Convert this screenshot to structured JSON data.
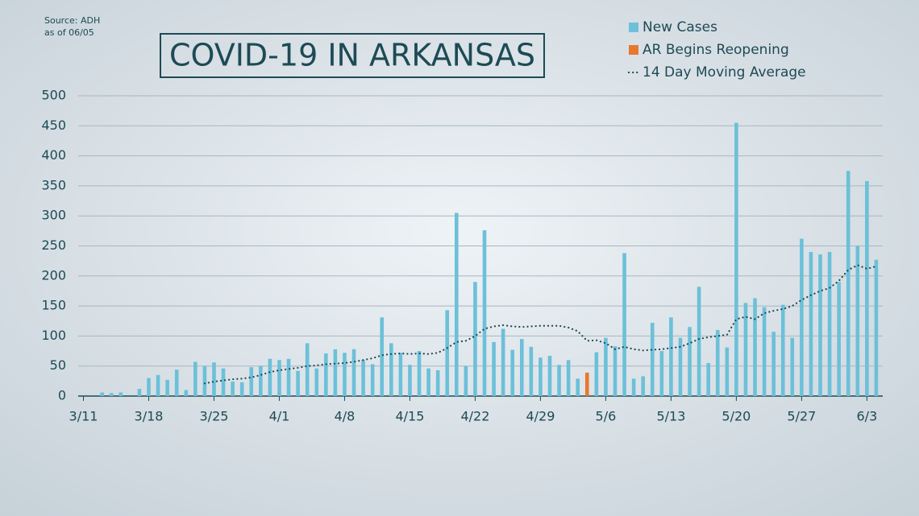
{
  "chart_data": {
    "type": "bar",
    "title": "COVID-19 IN ARKANSAS",
    "source": "Source: ADH",
    "as_of": "as of 06/05",
    "categories": [
      "3/11",
      null,
      null,
      null,
      null,
      null,
      null,
      "3/18",
      null,
      null,
      null,
      null,
      null,
      null,
      "3/25",
      null,
      null,
      null,
      null,
      null,
      null,
      "4/1",
      null,
      null,
      null,
      null,
      null,
      null,
      "4/8",
      null,
      null,
      null,
      null,
      null,
      null,
      "4/15",
      null,
      null,
      null,
      null,
      null,
      null,
      "4/22",
      null,
      null,
      null,
      null,
      null,
      null,
      "4/29",
      null,
      null,
      null,
      null,
      null,
      null,
      "5/6",
      null,
      null,
      null,
      null,
      null,
      null,
      "5/13",
      null,
      null,
      null,
      null,
      null,
      null,
      "5/20",
      null,
      null,
      null,
      null,
      null,
      null,
      "5/27",
      null,
      null,
      null,
      null,
      null,
      null,
      "6/3",
      null
    ],
    "series": [
      {
        "name": "New Cases",
        "type": "bar",
        "color": "#6cc0d9",
        "values": [
          0,
          0,
          6,
          5,
          6,
          0,
          12,
          30,
          35,
          27,
          44,
          10,
          57,
          50,
          56,
          46,
          24,
          23,
          48,
          50,
          62,
          60,
          62,
          42,
          88,
          46,
          71,
          78,
          72,
          78,
          60,
          53,
          131,
          88,
          72,
          52,
          75,
          46,
          43,
          143,
          305,
          50,
          190,
          276,
          90,
          112,
          77,
          95,
          82,
          64,
          67,
          52,
          60,
          29,
          null,
          73,
          97,
          83,
          238,
          29,
          33,
          122,
          75,
          131,
          97,
          115,
          182,
          55,
          110,
          81,
          455,
          155,
          163,
          148,
          107,
          152,
          97,
          262,
          240,
          236,
          240,
          190,
          375,
          250,
          358,
          227
        ]
      },
      {
        "name": "AR Begins Reopening",
        "type": "bar",
        "color": "#e8782e",
        "values": [
          null,
          null,
          null,
          null,
          null,
          null,
          null,
          null,
          null,
          null,
          null,
          null,
          null,
          null,
          null,
          null,
          null,
          null,
          null,
          null,
          null,
          null,
          null,
          null,
          null,
          null,
          null,
          null,
          null,
          null,
          null,
          null,
          null,
          null,
          null,
          null,
          null,
          null,
          null,
          null,
          null,
          null,
          null,
          null,
          null,
          null,
          null,
          null,
          null,
          null,
          null,
          null,
          null,
          null,
          39,
          null,
          null,
          null,
          null,
          null,
          null,
          null,
          null,
          null,
          null,
          null,
          null,
          null,
          null,
          null,
          null,
          null,
          null,
          null,
          null,
          null,
          null,
          null,
          null,
          null,
          null,
          null,
          null,
          null,
          null,
          null
        ]
      },
      {
        "name": "14 Day Moving Average",
        "type": "line",
        "color": "#1d4a55",
        "values": [
          null,
          null,
          null,
          null,
          null,
          null,
          null,
          null,
          null,
          null,
          null,
          null,
          null,
          21,
          24,
          26,
          28,
          29,
          31,
          35,
          40,
          43,
          45,
          47,
          50,
          51,
          53,
          54,
          55,
          57,
          60,
          63,
          68,
          70,
          71,
          70,
          71,
          70,
          72,
          80,
          90,
          92,
          100,
          112,
          116,
          118,
          116,
          115,
          116,
          117,
          117,
          117,
          114,
          108,
          92,
          93,
          88,
          78,
          82,
          78,
          76,
          77,
          78,
          80,
          82,
          88,
          95,
          98,
          100,
          102,
          128,
          132,
          128,
          138,
          142,
          145,
          150,
          160,
          168,
          175,
          180,
          192,
          210,
          218,
          212,
          216
        ]
      }
    ],
    "ylim": [
      0,
      500
    ],
    "yticks": [
      0,
      50,
      100,
      150,
      200,
      250,
      300,
      350,
      400,
      450,
      500
    ],
    "grid": true,
    "legend": "top-right"
  }
}
